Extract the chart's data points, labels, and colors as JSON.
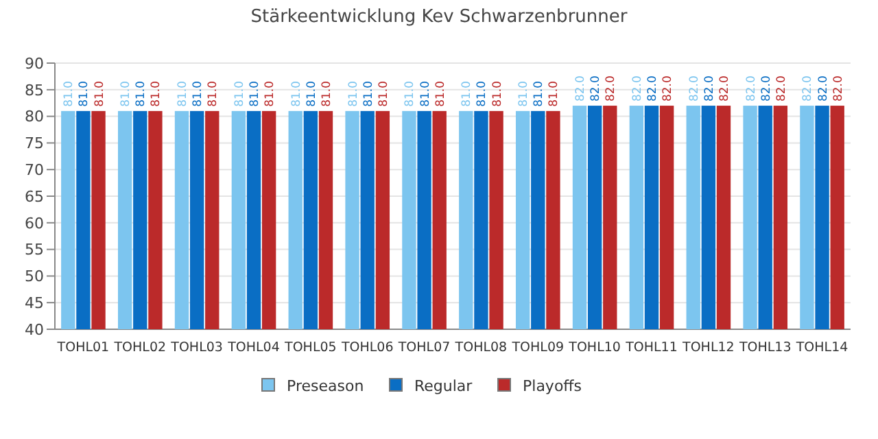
{
  "chart_data": {
    "type": "bar",
    "title": "Stärkeentwicklung Kev Schwarzenbrunner",
    "categories": [
      "TOHL01",
      "TOHL02",
      "TOHL03",
      "TOHL04",
      "TOHL05",
      "TOHL06",
      "TOHL07",
      "TOHL08",
      "TOHL09",
      "TOHL10",
      "TOHL11",
      "TOHL12",
      "TOHL13",
      "TOHL14"
    ],
    "series": [
      {
        "name": "Preseason",
        "color": "#7cc5ef",
        "values": [
          81,
          81,
          81,
          81,
          81,
          81,
          81,
          81,
          81,
          82,
          82,
          82,
          82,
          82
        ],
        "value_labels": [
          "81.0",
          "81.0",
          "81.0",
          "81.0",
          "81.0",
          "81.0",
          "81.0",
          "81.0",
          "81.0",
          "82.0",
          "82.0",
          "82.0",
          "82.0",
          "82.0"
        ]
      },
      {
        "name": "Regular",
        "color": "#0a6ec4",
        "values": [
          81,
          81,
          81,
          81,
          81,
          81,
          81,
          81,
          81,
          82,
          82,
          82,
          82,
          82
        ],
        "value_labels": [
          "81.0",
          "81.0",
          "81.0",
          "81.0",
          "81.0",
          "81.0",
          "81.0",
          "81.0",
          "81.0",
          "82.0",
          "82.0",
          "82.0",
          "82.0",
          "82.0"
        ]
      },
      {
        "name": "Playoffs",
        "color": "#bb2a2a",
        "values": [
          81,
          81,
          81,
          81,
          81,
          81,
          81,
          81,
          81,
          82,
          82,
          82,
          82,
          82
        ],
        "value_labels": [
          "81.0",
          "81.0",
          "81.0",
          "81.0",
          "81.0",
          "81.0",
          "81.0",
          "81.0",
          "81.0",
          "82.0",
          "82.0",
          "82.0",
          "82.0",
          "82.0"
        ]
      }
    ],
    "ylim": [
      40,
      90
    ],
    "yticks": [
      40,
      45,
      50,
      55,
      60,
      65,
      70,
      75,
      80,
      85,
      90
    ],
    "grid": "y",
    "legend": "bottom"
  }
}
